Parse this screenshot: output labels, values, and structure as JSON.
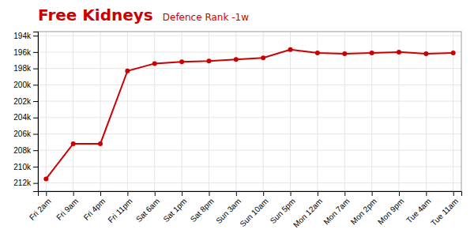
{
  "chart_data": {
    "type": "line",
    "title": "Free Kidneys",
    "subtitle": "Defence Rank -1w",
    "categories": [
      "Fri 2am",
      "Fri 9am",
      "Fri 4pm",
      "Fri 11pm",
      "Sat 6am",
      "Sat 1pm",
      "Sat 8pm",
      "Sun 3am",
      "Sun 10am",
      "Sun 5pm",
      "Mon 12am",
      "Mon 7am",
      "Mon 2pm",
      "Mon 9pm",
      "Tue 4am",
      "Tue 11am"
    ],
    "values": [
      211500,
      207200,
      207200,
      198300,
      197400,
      197200,
      197100,
      196900,
      196700,
      195700,
      196100,
      196200,
      196100,
      196000,
      196200,
      196100
    ],
    "color": "#cc0000",
    "marker": "circle",
    "ylim": [
      213000,
      193500
    ],
    "yticks": [
      {
        "value": 194000,
        "label": "194k"
      },
      {
        "value": 196000,
        "label": "196k"
      },
      {
        "value": 198000,
        "label": "198k"
      },
      {
        "value": 200000,
        "label": "200k"
      },
      {
        "value": 202000,
        "label": "202k"
      },
      {
        "value": 204000,
        "label": "204k"
      },
      {
        "value": 206000,
        "label": "206k"
      },
      {
        "value": 208000,
        "label": "208k"
      },
      {
        "value": 210000,
        "label": "210k"
      },
      {
        "value": 212000,
        "label": "212k"
      }
    ],
    "grid": true
  }
}
